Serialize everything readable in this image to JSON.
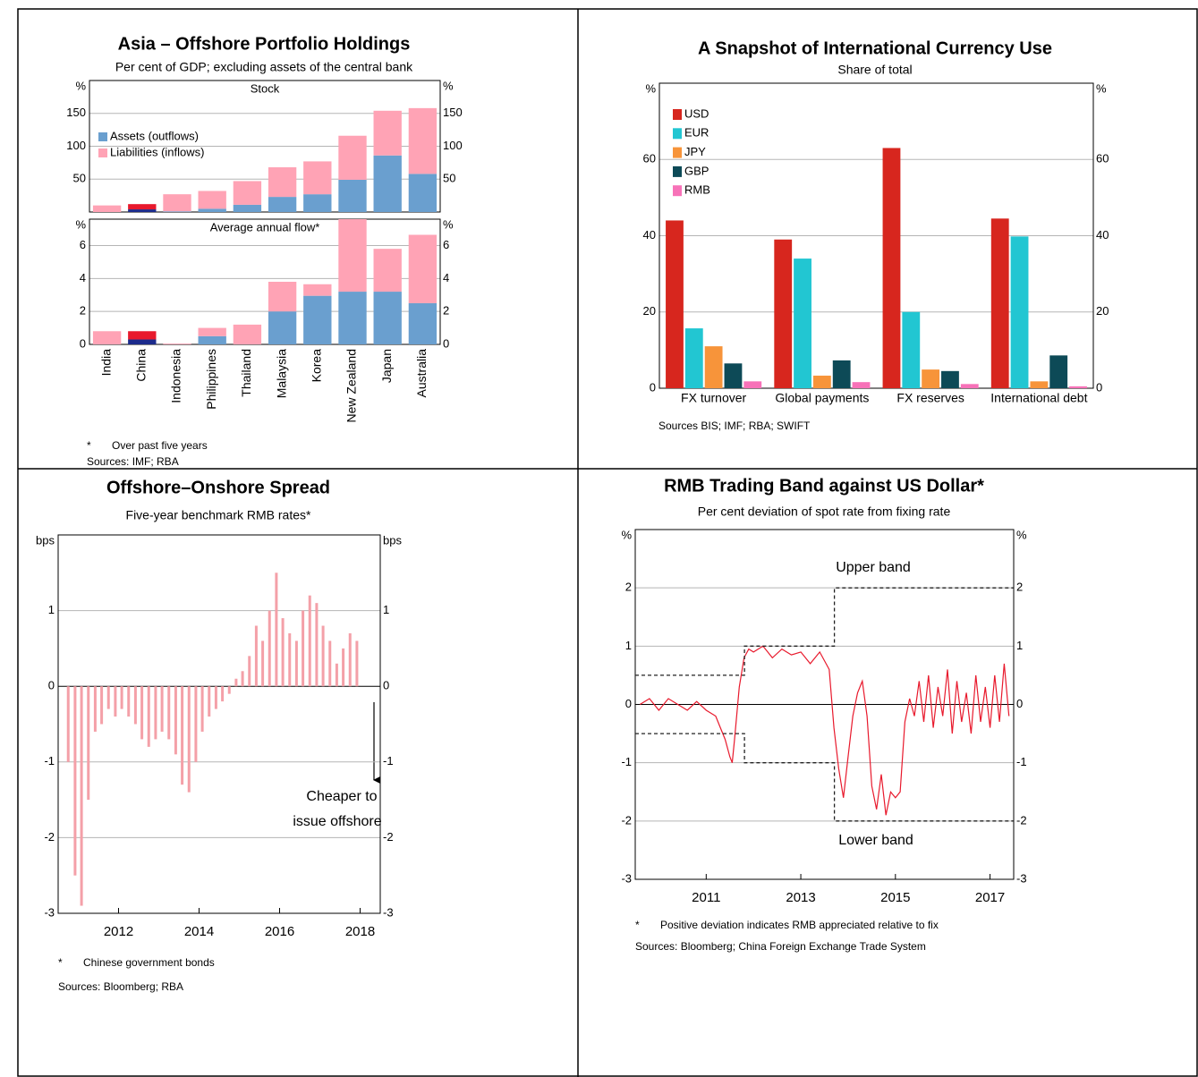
{
  "chart_data": [
    {
      "type": "bar",
      "stacked": true,
      "title": "Asia – Offshore Portfolio Holdings",
      "subtitle": "Per cent of GDP; excluding assets of the central bank",
      "categories": [
        "India",
        "China",
        "Indonesia",
        "Philippines",
        "Thailand",
        "Malaysia",
        "Korea",
        "New Zealand",
        "Japan",
        "Australia"
      ],
      "highlight_category": "China",
      "legend": "upper left",
      "panels": [
        {
          "title": "Stock",
          "y_unit": "%",
          "ylim": [
            0,
            200
          ],
          "yticks": [
            50,
            100,
            150
          ],
          "grid": true,
          "series": [
            {
              "name": "Assets (outflows)",
              "color": "#6a9fcf",
              "highlight_color": "#1c2b8c",
              "values": [
                0,
                4,
                1,
                5,
                11,
                23,
                27,
                49,
                86,
                58
              ]
            },
            {
              "name": "Liabilities (inflows)",
              "color": "#ffa3b5",
              "highlight_color": "#e8192c",
              "values": [
                10,
                8,
                26,
                27,
                36,
                45,
                50,
                67,
                68,
                100
              ]
            }
          ]
        },
        {
          "title": "Average annual flow*",
          "y_unit": "%",
          "ylim": [
            0,
            7.6
          ],
          "yticks": [
            0,
            2,
            4,
            6
          ],
          "grid": true,
          "series": [
            {
              "color": "#6a9fcf",
              "highlight_color": "#1c2b8c",
              "values": [
                0,
                0.3,
                0,
                0.5,
                0,
                2.0,
                2.95,
                3.2,
                3.2,
                2.5
              ]
            },
            {
              "color": "#ffa3b5",
              "highlight_color": "#e8192c",
              "values": [
                0.8,
                0.5,
                0.05,
                0.5,
                1.2,
                1.8,
                0.7,
                4.4,
                2.6,
                4.15
              ]
            }
          ]
        }
      ],
      "footnote_mark": "*",
      "footnote": "Over past five years",
      "sources": "Sources: IMF; RBA"
    },
    {
      "type": "bar",
      "title": "A Snapshot of International Currency Use",
      "subtitle": "Share of total",
      "y_unit": "%",
      "categories": [
        "FX turnover",
        "Global payments",
        "FX reserves",
        "International debt"
      ],
      "ylim": [
        0,
        80
      ],
      "yticks": [
        0,
        20,
        40,
        60
      ],
      "grid": true,
      "legend": "upper left",
      "series": [
        {
          "name": "USD",
          "color": "#d7261e",
          "values": [
            44,
            39,
            63,
            44.5
          ]
        },
        {
          "name": "EUR",
          "color": "#22c6d2",
          "values": [
            15.7,
            34,
            20,
            39.8
          ]
        },
        {
          "name": "JPY",
          "color": "#f7943a",
          "values": [
            11,
            3.3,
            4.9,
            1.8
          ]
        },
        {
          "name": "GBP",
          "color": "#0d4a57",
          "values": [
            6.5,
            7.3,
            4.5,
            8.6
          ]
        },
        {
          "name": "RMB",
          "color": "#f772b8",
          "values": [
            1.8,
            1.6,
            1.1,
            0.5
          ]
        }
      ],
      "sources": "Sources BIS; IMF; RBA; SWIFT"
    },
    {
      "type": "bar",
      "title": "Offshore–Onshore Spread",
      "subtitle": "Five-year benchmark RMB rates*",
      "y_unit": "bps",
      "x": [
        2010.75,
        2010.92,
        2011.08,
        2011.25,
        2011.42,
        2011.58,
        2011.75,
        2011.92,
        2012.08,
        2012.25,
        2012.42,
        2012.58,
        2012.75,
        2012.92,
        2013.08,
        2013.25,
        2013.42,
        2013.58,
        2013.75,
        2013.92,
        2014.08,
        2014.25,
        2014.42,
        2014.58,
        2014.75,
        2014.92,
        2015.08,
        2015.25,
        2015.42,
        2015.58,
        2015.75,
        2015.92,
        2016.08,
        2016.25,
        2016.42,
        2016.58,
        2016.75,
        2016.92,
        2017.08,
        2017.25,
        2017.42,
        2017.58,
        2017.75,
        2017.92
      ],
      "values": [
        -1.0,
        -2.5,
        -2.9,
        -1.5,
        -0.6,
        -0.5,
        -0.3,
        -0.4,
        -0.3,
        -0.4,
        -0.5,
        -0.7,
        -0.8,
        -0.7,
        -0.6,
        -0.7,
        -0.9,
        -1.3,
        -1.4,
        -1.0,
        -0.6,
        -0.4,
        -0.3,
        -0.2,
        -0.1,
        0.1,
        0.2,
        0.4,
        0.8,
        0.6,
        1.0,
        1.5,
        0.9,
        0.7,
        0.6,
        1.0,
        1.2,
        1.1,
        0.8,
        0.6,
        0.3,
        0.5,
        0.7,
        0.6
      ],
      "color": "#f4a0a8",
      "xlim": [
        2010.5,
        2018.5
      ],
      "xticks": [
        2012,
        2014,
        2016,
        2018
      ],
      "ylim": [
        -3,
        2
      ],
      "yticks": [
        -3,
        -2,
        -1,
        0,
        1
      ],
      "grid": true,
      "annotation": [
        "Cheaper to",
        "issue offshore"
      ],
      "footnote_mark": "*",
      "footnote": "Chinese government bonds",
      "sources": "Sources: Bloomberg; RBA"
    },
    {
      "type": "line",
      "title": "RMB Trading Band against US Dollar*",
      "subtitle": "Per cent deviation of spot rate from fixing rate",
      "y_unit": "%",
      "xlim": [
        2009.5,
        2017.5
      ],
      "xticks": [
        2011,
        2013,
        2015,
        2017
      ],
      "ylim": [
        -3,
        3
      ],
      "yticks": [
        -3,
        -2,
        -1,
        0,
        1,
        2
      ],
      "grid": true,
      "series": [
        {
          "color": "#e8192c",
          "x": [
            2009.6,
            2009.8,
            2010.0,
            2010.2,
            2010.4,
            2010.6,
            2010.8,
            2011.0,
            2011.2,
            2011.3,
            2011.4,
            2011.5,
            2011.55,
            2011.6,
            2011.7,
            2011.8,
            2011.9,
            2012.0,
            2012.2,
            2012.4,
            2012.6,
            2012.8,
            2013.0,
            2013.2,
            2013.4,
            2013.6,
            2013.7,
            2013.8,
            2013.9,
            2014.0,
            2014.1,
            2014.2,
            2014.3,
            2014.4,
            2014.5,
            2014.6,
            2014.7,
            2014.8,
            2014.9,
            2015.0,
            2015.1,
            2015.2,
            2015.3,
            2015.4,
            2015.5,
            2015.6,
            2015.7,
            2015.8,
            2015.9,
            2016.0,
            2016.1,
            2016.2,
            2016.3,
            2016.4,
            2016.5,
            2016.6,
            2016.7,
            2016.8,
            2016.9,
            2017.0,
            2017.1,
            2017.2,
            2017.3,
            2017.4
          ],
          "values": [
            0.0,
            0.1,
            -0.1,
            0.1,
            0.0,
            -0.1,
            0.05,
            -0.1,
            -0.2,
            -0.4,
            -0.6,
            -0.9,
            -1.0,
            -0.6,
            0.3,
            0.8,
            0.95,
            0.9,
            1.0,
            0.8,
            0.95,
            0.85,
            0.9,
            0.7,
            0.9,
            0.6,
            -0.4,
            -1.1,
            -1.6,
            -0.9,
            -0.2,
            0.2,
            0.4,
            -0.2,
            -1.4,
            -1.8,
            -1.2,
            -1.9,
            -1.5,
            -1.6,
            -1.5,
            -0.3,
            0.1,
            -0.2,
            0.4,
            -0.3,
            0.5,
            -0.4,
            0.3,
            -0.2,
            0.6,
            -0.5,
            0.4,
            -0.3,
            0.2,
            -0.5,
            0.5,
            -0.3,
            0.3,
            -0.4,
            0.5,
            -0.3,
            0.7,
            -0.2
          ]
        },
        {
          "color": "#222222",
          "dashed": true,
          "x": [
            2009.5,
            2011.81,
            2011.81,
            2013.71,
            2013.71,
            2017.5
          ],
          "values": [
            0.5,
            0.5,
            1,
            1,
            2,
            2
          ]
        },
        {
          "color": "#222222",
          "dashed": true,
          "x": [
            2009.5,
            2011.81,
            2011.81,
            2013.71,
            2013.71,
            2017.5
          ],
          "values": [
            -0.5,
            -0.5,
            -1,
            -1,
            -2,
            -2
          ]
        }
      ],
      "annotations": [
        "Upper band",
        "Lower band"
      ],
      "footnote_mark": "*",
      "footnote": "Positive deviation indicates RMB appreciated relative to fix",
      "sources": "Sources: Bloomberg; China Foreign Exchange Trade System"
    }
  ]
}
